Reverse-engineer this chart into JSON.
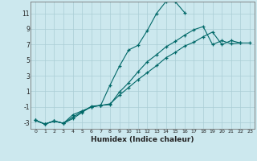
{
  "title": "",
  "xlabel": "Humidex (Indice chaleur)",
  "background_color": "#cce8ee",
  "grid_color": "#aacdd5",
  "line_color": "#006868",
  "xlim": [
    -0.5,
    23.5
  ],
  "ylim": [
    -3.8,
    12.5
  ],
  "yticks": [
    -3,
    -1,
    1,
    3,
    5,
    7,
    9,
    11
  ],
  "xticks": [
    0,
    1,
    2,
    3,
    4,
    5,
    6,
    7,
    8,
    9,
    10,
    11,
    12,
    13,
    14,
    15,
    16,
    17,
    18,
    19,
    20,
    21,
    22,
    23
  ],
  "line1_y": [
    -2.7,
    -3.2,
    -2.8,
    -3.1,
    -2.5,
    -1.7,
    -0.9,
    -0.8,
    1.8,
    4.2,
    6.3,
    6.9,
    8.8,
    11.0,
    12.5,
    12.5,
    11.1,
    null,
    null,
    null,
    null,
    null,
    null,
    null
  ],
  "line2_y": [
    -2.7,
    -3.2,
    -2.8,
    -3.1,
    -2.3,
    -1.6,
    -1.0,
    -0.8,
    -0.7,
    0.9,
    2.1,
    3.5,
    4.8,
    5.7,
    6.7,
    7.4,
    8.2,
    8.9,
    9.3,
    7.0,
    7.5,
    7.1,
    7.2,
    null
  ],
  "line3_y": [
    -2.7,
    -3.2,
    -2.8,
    -3.1,
    -2.0,
    -1.5,
    -1.0,
    -0.8,
    -0.6,
    0.5,
    1.5,
    2.5,
    3.4,
    4.3,
    5.3,
    6.0,
    6.8,
    7.3,
    8.0,
    8.6,
    7.0,
    7.5,
    7.2,
    7.2
  ]
}
